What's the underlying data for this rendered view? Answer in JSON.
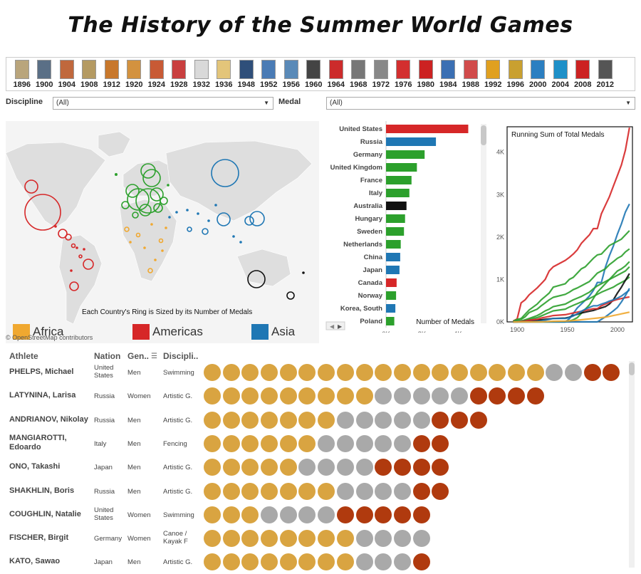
{
  "title": "The History of the Summer World Games",
  "timeline": [
    {
      "year": "1896",
      "color": "#b9a57c"
    },
    {
      "year": "1900",
      "color": "#5a6f86"
    },
    {
      "year": "1904",
      "color": "#c0683d"
    },
    {
      "year": "1908",
      "color": "#b49a62"
    },
    {
      "year": "1912",
      "color": "#c8782c"
    },
    {
      "year": "1920",
      "color": "#d3923f"
    },
    {
      "year": "1924",
      "color": "#c85a35"
    },
    {
      "year": "1928",
      "color": "#c93f3f"
    },
    {
      "year": "1932",
      "color": "#d9d9d9"
    },
    {
      "year": "1936",
      "color": "#e3c57a"
    },
    {
      "year": "1948",
      "color": "#2f4f7a"
    },
    {
      "year": "1952",
      "color": "#4a7bb5"
    },
    {
      "year": "1956",
      "color": "#5a8ab8"
    },
    {
      "year": "1960",
      "color": "#444444"
    },
    {
      "year": "1964",
      "color": "#cc2b2b"
    },
    {
      "year": "1968",
      "color": "#777777"
    },
    {
      "year": "1972",
      "color": "#888888"
    },
    {
      "year": "1976",
      "color": "#d32f2f"
    },
    {
      "year": "1980",
      "color": "#cc2222"
    },
    {
      "year": "1984",
      "color": "#3b6fb3"
    },
    {
      "year": "1988",
      "color": "#d14b4b"
    },
    {
      "year": "1992",
      "color": "#e0a020"
    },
    {
      "year": "1996",
      "color": "#c9a030"
    },
    {
      "year": "2000",
      "color": "#2b7fc1"
    },
    {
      "year": "2004",
      "color": "#1e90c8"
    },
    {
      "year": "2008",
      "color": "#cc2222"
    },
    {
      "year": "2012",
      "color": "#555555"
    }
  ],
  "filters": {
    "discipline_label": "Discipline",
    "discipline_value": "(All)",
    "medal_label": "Medal",
    "medal_value": "(All)"
  },
  "map": {
    "caption": "Each Country's Ring is Sized by its Number of Medals",
    "attribution": "© OpenStreetMap contributors",
    "legend": [
      {
        "name": "Africa",
        "color": "#f0a830"
      },
      {
        "name": "Americas",
        "color": "#d62728"
      },
      {
        "name": "Asia",
        "color": "#1f77b4"
      }
    ]
  },
  "colors": {
    "Africa": "#f0a830",
    "Americas": "#d62728",
    "Asia": "#1f77b4",
    "Europe": "#2ca02c",
    "Oceania": "#111111",
    "gold": "#d9a441",
    "silver": "#a9a9a9",
    "bronze": "#b03a0e"
  },
  "chart_data": [
    {
      "type": "bar",
      "xlabel": "Number of Medals",
      "xticks": [
        "0K",
        "2K",
        "4K"
      ],
      "xlim": [
        0,
        4800
      ],
      "categories": [
        "United States",
        "Russia",
        "Germany",
        "United Kingdom",
        "France",
        "Italy",
        "Australia",
        "Hungary",
        "Sweden",
        "Netherlands",
        "China",
        "Japan",
        "Canada",
        "Norway",
        "Korea, South",
        "Poland"
      ],
      "values": [
        4580,
        2780,
        2150,
        1720,
        1420,
        1300,
        1140,
        1060,
        1000,
        820,
        790,
        750,
        590,
        560,
        520,
        460
      ],
      "regions": [
        "Americas",
        "Asia",
        "Europe",
        "Europe",
        "Europe",
        "Europe",
        "Oceania",
        "Europe",
        "Europe",
        "Europe",
        "Asia",
        "Asia",
        "Americas",
        "Europe",
        "Asia",
        "Europe"
      ]
    },
    {
      "type": "line",
      "title": "Running Sum of Total Medals",
      "xticks": [
        "1900",
        "1950",
        "2000"
      ],
      "yticks": [
        "0K",
        "1K",
        "2K",
        "3K",
        "4K"
      ],
      "xlim": [
        1890,
        2015
      ],
      "ylim": [
        0,
        4600
      ],
      "x": [
        1896,
        1900,
        1904,
        1908,
        1912,
        1920,
        1924,
        1928,
        1932,
        1936,
        1948,
        1952,
        1956,
        1960,
        1964,
        1968,
        1972,
        1976,
        1980,
        1984,
        1988,
        1992,
        1996,
        2000,
        2004,
        2008,
        2012
      ],
      "series": [
        {
          "region": "Americas",
          "values": [
            20,
            70,
            450,
            520,
            640,
            800,
            900,
            1000,
            1200,
            1300,
            1450,
            1520,
            1600,
            1700,
            1850,
            1950,
            2050,
            2200,
            2200,
            2550,
            2750,
            2950,
            3200,
            3450,
            3700,
            4050,
            4580
          ]
        },
        {
          "region": "Asia",
          "values": [
            0,
            0,
            0,
            0,
            0,
            0,
            0,
            0,
            0,
            0,
            0,
            70,
            200,
            330,
            420,
            510,
            610,
            740,
            930,
            930,
            1290,
            1560,
            1790,
            2070,
            2310,
            2590,
            2780
          ]
        },
        {
          "region": "Europe",
          "values": [
            10,
            60,
            80,
            180,
            280,
            420,
            520,
            600,
            680,
            820,
            900,
            1000,
            1050,
            1150,
            1250,
            1300,
            1400,
            1500,
            1580,
            1600,
            1700,
            1800,
            1850,
            1900,
            1950,
            2050,
            2150
          ]
        },
        {
          "region": "Europe",
          "values": [
            5,
            40,
            60,
            120,
            220,
            300,
            380,
            450,
            520,
            580,
            650,
            700,
            760,
            800,
            850,
            900,
            950,
            1050,
            1150,
            1200,
            1250,
            1350,
            1420,
            1500,
            1550,
            1650,
            1720
          ]
        },
        {
          "region": "Europe",
          "values": [
            0,
            0,
            0,
            0,
            0,
            0,
            0,
            0,
            0,
            0,
            0,
            20,
            50,
            100,
            200,
            300,
            400,
            550,
            700,
            800,
            900,
            1000,
            1100,
            1200,
            1250,
            1320,
            1420
          ]
        },
        {
          "region": "Europe",
          "values": [
            0,
            10,
            20,
            50,
            80,
            150,
            200,
            260,
            300,
            360,
            420,
            470,
            520,
            560,
            600,
            650,
            700,
            780,
            850,
            900,
            950,
            1000,
            1050,
            1100,
            1150,
            1200,
            1300
          ]
        },
        {
          "region": "Europe",
          "values": [
            0,
            0,
            10,
            30,
            60,
            100,
            140,
            180,
            220,
            260,
            300,
            350,
            390,
            430,
            470,
            510,
            550,
            600,
            650,
            700,
            740,
            780,
            820,
            880,
            930,
            980,
            1060
          ]
        },
        {
          "region": "Oceania",
          "values": [
            0,
            5,
            10,
            20,
            30,
            40,
            50,
            60,
            70,
            80,
            90,
            110,
            150,
            180,
            210,
            230,
            250,
            270,
            300,
            330,
            360,
            420,
            520,
            680,
            820,
            980,
            1140
          ]
        },
        {
          "region": "Americas",
          "values": [
            0,
            0,
            10,
            20,
            40,
            60,
            90,
            110,
            130,
            150,
            170,
            190,
            210,
            230,
            250,
            270,
            290,
            310,
            310,
            380,
            420,
            460,
            500,
            530,
            550,
            570,
            590
          ]
        },
        {
          "region": "Asia",
          "values": [
            0,
            0,
            0,
            0,
            0,
            0,
            0,
            0,
            0,
            0,
            0,
            0,
            0,
            0,
            0,
            0,
            0,
            0,
            0,
            60,
            120,
            190,
            260,
            340,
            470,
            620,
            790
          ]
        },
        {
          "region": "Asia",
          "values": [
            0,
            0,
            0,
            0,
            0,
            10,
            20,
            40,
            60,
            80,
            80,
            100,
            140,
            190,
            250,
            300,
            340,
            380,
            380,
            420,
            450,
            490,
            520,
            560,
            610,
            680,
            750
          ]
        },
        {
          "region": "Africa",
          "values": [
            0,
            0,
            0,
            0,
            0,
            0,
            0,
            5,
            10,
            15,
            20,
            25,
            30,
            40,
            50,
            60,
            70,
            80,
            90,
            100,
            110,
            130,
            150,
            170,
            190,
            210,
            230
          ]
        }
      ]
    }
  ],
  "athletes_table": {
    "headers": {
      "athlete": "Athlete",
      "nation": "Nation",
      "gender": "Gen..",
      "discipline": "Discipli.."
    },
    "rows": [
      {
        "name": "PHELPS, Michael",
        "nation": "United States",
        "gender": "Men",
        "discipline": "Swimming",
        "gold": 18,
        "silver": 2,
        "bronze": 2
      },
      {
        "name": "LATYNINA, Larisa",
        "nation": "Russia",
        "gender": "Women",
        "discipline": "Artistic G.",
        "gold": 9,
        "silver": 5,
        "bronze": 4
      },
      {
        "name": "ANDRIANOV, Nikolay",
        "nation": "Russia",
        "gender": "Men",
        "discipline": "Artistic G.",
        "gold": 7,
        "silver": 5,
        "bronze": 3
      },
      {
        "name": "MANGIAROTTI, Edoardo",
        "nation": "Italy",
        "gender": "Men",
        "discipline": "Fencing",
        "gold": 6,
        "silver": 5,
        "bronze": 2
      },
      {
        "name": "ONO, Takashi",
        "nation": "Japan",
        "gender": "Men",
        "discipline": "Artistic G.",
        "gold": 5,
        "silver": 4,
        "bronze": 4
      },
      {
        "name": "SHAKHLIN, Boris",
        "nation": "Russia",
        "gender": "Men",
        "discipline": "Artistic G.",
        "gold": 7,
        "silver": 4,
        "bronze": 2
      },
      {
        "name": "COUGHLIN, Natalie",
        "nation": "United States",
        "gender": "Women",
        "discipline": "Swimming",
        "gold": 3,
        "silver": 4,
        "bronze": 5
      },
      {
        "name": "FISCHER, Birgit",
        "nation": "Germany",
        "gender": "Women",
        "discipline": "Canoe / Kayak F",
        "gold": 8,
        "silver": 4,
        "bronze": 0
      },
      {
        "name": "KATO, Sawao",
        "nation": "Japan",
        "gender": "Men",
        "discipline": "Artistic G.",
        "gold": 8,
        "silver": 3,
        "bronze": 1
      }
    ]
  }
}
